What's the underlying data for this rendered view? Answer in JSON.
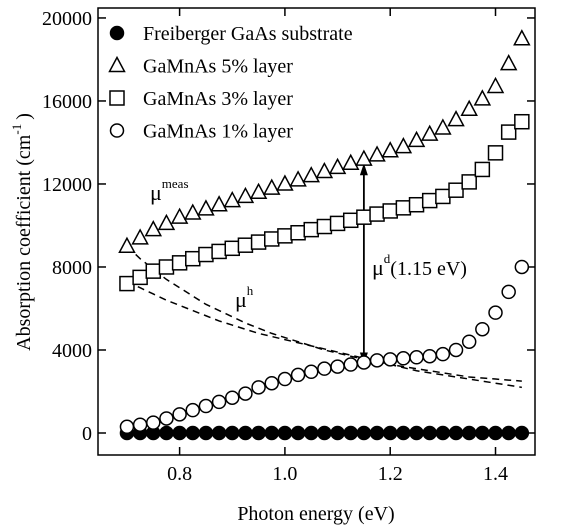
{
  "chart_data": {
    "type": "scatter",
    "xlabel": "Photon energy (eV)",
    "ylabel": {
      "text": "Absorption coefficient (cm",
      "sup": "-1",
      "end": ")"
    },
    "x": [
      0.7,
      0.725,
      0.75,
      0.775,
      0.8,
      0.825,
      0.85,
      0.875,
      0.9,
      0.925,
      0.95,
      0.975,
      1.0,
      1.025,
      1.05,
      1.075,
      1.1,
      1.125,
      1.15,
      1.175,
      1.2,
      1.225,
      1.25,
      1.275,
      1.3,
      1.325,
      1.35,
      1.375,
      1.4,
      1.425,
      1.45
    ],
    "series": [
      {
        "name": "Freiberger GaAs substrate",
        "marker": "circle-filled",
        "color": "#000000",
        "values": [
          0,
          0,
          0,
          0,
          0,
          0,
          0,
          0,
          0,
          0,
          0,
          0,
          0,
          0,
          0,
          0,
          0,
          0,
          0,
          0,
          0,
          0,
          0,
          0,
          0,
          0,
          0,
          0,
          0,
          0,
          0
        ]
      },
      {
        "name": "GaMnAs 5% layer",
        "marker": "triangle",
        "color": "#000000",
        "values": [
          9000,
          9400,
          9800,
          10100,
          10400,
          10600,
          10800,
          11000,
          11200,
          11400,
          11600,
          11800,
          12000,
          12200,
          12400,
          12600,
          12800,
          13000,
          13200,
          13400,
          13600,
          13800,
          14100,
          14400,
          14700,
          15100,
          15600,
          16100,
          16700,
          17800,
          19000
        ]
      },
      {
        "name": "GaMnAs 3% layer",
        "marker": "square",
        "color": "#000000",
        "values": [
          7200,
          7500,
          7800,
          8000,
          8200,
          8400,
          8600,
          8750,
          8900,
          9050,
          9200,
          9350,
          9500,
          9650,
          9800,
          9950,
          10100,
          10250,
          10400,
          10550,
          10700,
          10850,
          11000,
          11200,
          11400,
          11700,
          12100,
          12700,
          13500,
          14500,
          15000
        ]
      },
      {
        "name": "GaMnAs 1% layer",
        "marker": "circle",
        "color": "#000000",
        "values": [
          300,
          400,
          500,
          700,
          900,
          1100,
          1300,
          1500,
          1700,
          1900,
          2200,
          2400,
          2600,
          2800,
          2950,
          3100,
          3200,
          3300,
          3400,
          3500,
          3550,
          3600,
          3650,
          3700,
          3800,
          4000,
          4400,
          5000,
          5800,
          6800,
          8000
        ]
      },
      {
        "style": "dashed",
        "color": "#000000",
        "values": [
          9000,
          8400,
          7900,
          7400,
          7000,
          6600,
          6200,
          5900,
          5600,
          5300,
          5050,
          4800,
          4600,
          4400,
          4200,
          4000,
          3850,
          3700,
          3550,
          3400,
          3300,
          3200,
          3100,
          3000,
          2900,
          2800,
          2700,
          2650,
          2600,
          2550,
          2500
        ]
      },
      {
        "style": "dashed",
        "color": "#000000",
        "values": [
          7300,
          7000,
          6700,
          6400,
          6150,
          5900,
          5650,
          5400,
          5200,
          5000,
          4800,
          4650,
          4500,
          4350,
          4200,
          4050,
          3900,
          3750,
          3600,
          3450,
          3300,
          3150,
          3000,
          2900,
          2800,
          2700,
          2600,
          2500,
          2400,
          2300,
          2200
        ]
      }
    ],
    "arrow": {
      "x": 1.15,
      "from": 13000,
      "to": 3300
    },
    "annotations": [
      {
        "base": "μ",
        "sup": "meas"
      },
      {
        "base": "μ",
        "sup": "h"
      },
      {
        "base": "μ",
        "sup": "d",
        "end": "(1.15 eV)"
      }
    ],
    "xlim": [
      0.645,
      1.475
    ],
    "ylim": [
      -1060,
      20480
    ],
    "xticks": [
      0.8,
      {
        "value": 1,
        "label": "1.0"
      },
      1.2,
      1.4
    ],
    "yticks": [
      0,
      4000,
      8000,
      12000,
      16000,
      20000
    ],
    "legend": "upper left"
  }
}
